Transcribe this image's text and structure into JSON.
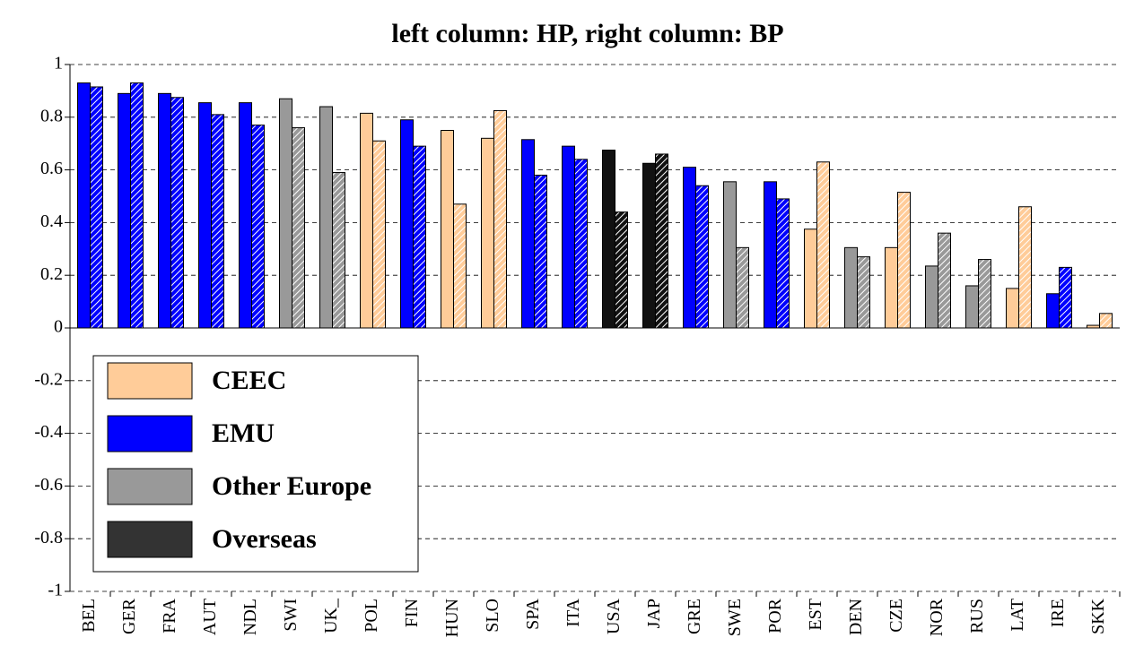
{
  "chart_data": {
    "type": "bar",
    "title": "left column: HP, right column: BP",
    "categories": [
      "BEL",
      "GER",
      "FRA",
      "AUT",
      "NDL",
      "SWI",
      "UK_",
      "POL",
      "FIN",
      "HUN",
      "SLO",
      "SPA",
      "ITA",
      "USA",
      "JAP",
      "GRE",
      "SWE",
      "POR",
      "EST",
      "DEN",
      "CZE",
      "NOR",
      "RUS",
      "LAT",
      "IRE",
      "SKK"
    ],
    "colors": [
      "#0000ff",
      "#0000ff",
      "#0000ff",
      "#0000ff",
      "#0000ff",
      "#999999",
      "#999999",
      "#ffcc99",
      "#0000ff",
      "#ffcc99",
      "#ffcc99",
      "#0000ff",
      "#0000ff",
      "#111111",
      "#111111",
      "#0000ff",
      "#999999",
      "#0000ff",
      "#ffcc99",
      "#999999",
      "#ffcc99",
      "#999999",
      "#999999",
      "#ffcc99",
      "#0000ff",
      "#ffcc99"
    ],
    "series": [
      {
        "values": [
          0.93,
          0.89,
          0.89,
          0.855,
          0.855,
          0.87,
          0.84,
          0.815,
          0.79,
          0.75,
          0.72,
          0.715,
          0.69,
          0.675,
          0.625,
          0.61,
          0.555,
          0.555,
          0.375,
          0.305,
          0.305,
          0.235,
          0.16,
          0.15,
          0.13,
          0.01
        ]
      },
      {
        "hatch": true,
        "values": [
          0.915,
          0.93,
          0.875,
          0.81,
          0.77,
          0.76,
          0.59,
          0.71,
          0.69,
          0.47,
          0.825,
          0.58,
          0.64,
          0.44,
          0.66,
          0.54,
          0.305,
          0.49,
          0.63,
          0.27,
          0.515,
          0.36,
          0.26,
          0.46,
          0.23,
          0.055
        ]
      }
    ],
    "legend": [
      {
        "name": "CEEC",
        "color": "#ffcc99"
      },
      {
        "name": "EMU",
        "color": "#0000ff"
      },
      {
        "name": "Other Europe",
        "color": "#999999"
      },
      {
        "name": "Overseas",
        "color": "#333333"
      }
    ],
    "ylim": [
      -1,
      1
    ],
    "yticks": [
      -1,
      -0.8,
      -0.6,
      -0.4,
      -0.2,
      0,
      0.2,
      0.4,
      0.6,
      0.8,
      1
    ],
    "grid": true
  }
}
